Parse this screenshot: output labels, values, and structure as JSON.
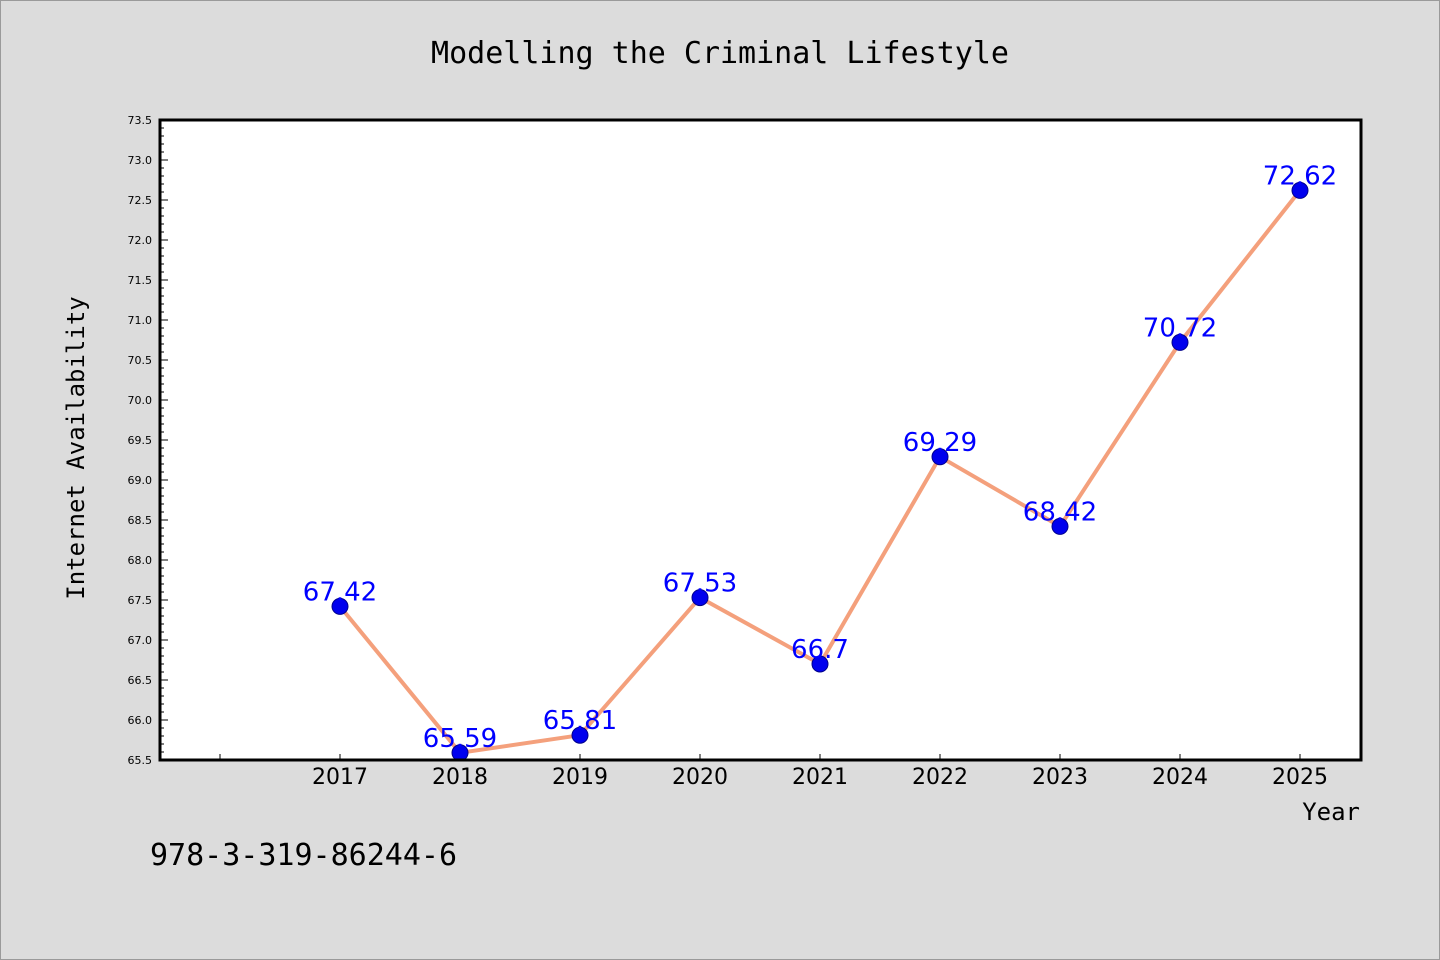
{
  "chart_data": {
    "type": "line",
    "title": "Modelling the Criminal Lifestyle",
    "xlabel": "Year",
    "ylabel": "Internet Availability",
    "ylim": [
      65.5,
      73.5
    ],
    "yticks": [
      "65.5",
      "66.0",
      "66.5",
      "67.0",
      "67.5",
      "68.0",
      "68.5",
      "69.0",
      "69.5",
      "70.0",
      "70.5",
      "71.0",
      "71.5",
      "72.0",
      "72.5",
      "73.0",
      "73.5"
    ],
    "x": [
      "2017",
      "2018",
      "2019",
      "2020",
      "2021",
      "2022",
      "2023",
      "2024",
      "2025"
    ],
    "values": [
      67.42,
      65.59,
      65.81,
      67.53,
      66.7,
      69.29,
      68.42,
      70.72,
      72.62
    ],
    "data_labels": [
      "67.42",
      "65.59",
      "65.81",
      "67.53",
      "66.7",
      "69.29",
      "68.42",
      "70.72",
      "72.62"
    ],
    "grid": false,
    "colors": {
      "line": "#f4a07c",
      "marker": "#0000ee",
      "label": "#0000ff",
      "background": "#dcdcdc",
      "plot_bg": "#ffffff"
    }
  },
  "footer": {
    "code": "978-3-319-86244-6"
  }
}
